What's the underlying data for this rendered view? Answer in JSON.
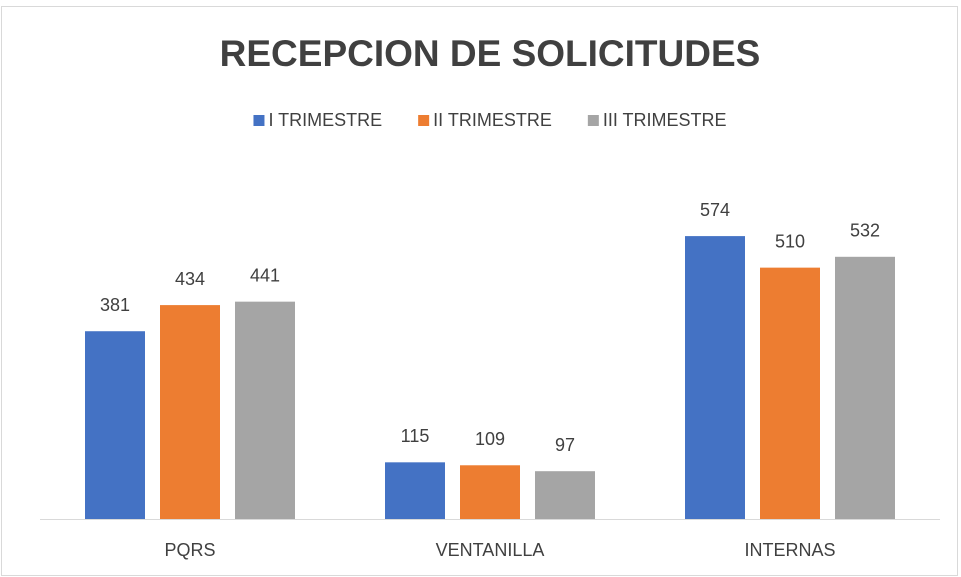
{
  "chart_data": {
    "type": "bar",
    "title": "RECEPCION DE SOLICITUDES",
    "categories": [
      "PQRS",
      "VENTANILLA",
      "INTERNAS"
    ],
    "series": [
      {
        "name": "I TRIMESTRE",
        "color": "#4472c4",
        "values": [
          381,
          115,
          574
        ]
      },
      {
        "name": "II TRIMESTRE",
        "color": "#ed7d31",
        "values": [
          434,
          109,
          510
        ]
      },
      {
        "name": "III TRIMESTRE",
        "color": "#a5a5a5",
        "values": [
          441,
          97,
          532
        ]
      }
    ],
    "ylim": [
      0,
      700
    ],
    "legend": "top"
  }
}
